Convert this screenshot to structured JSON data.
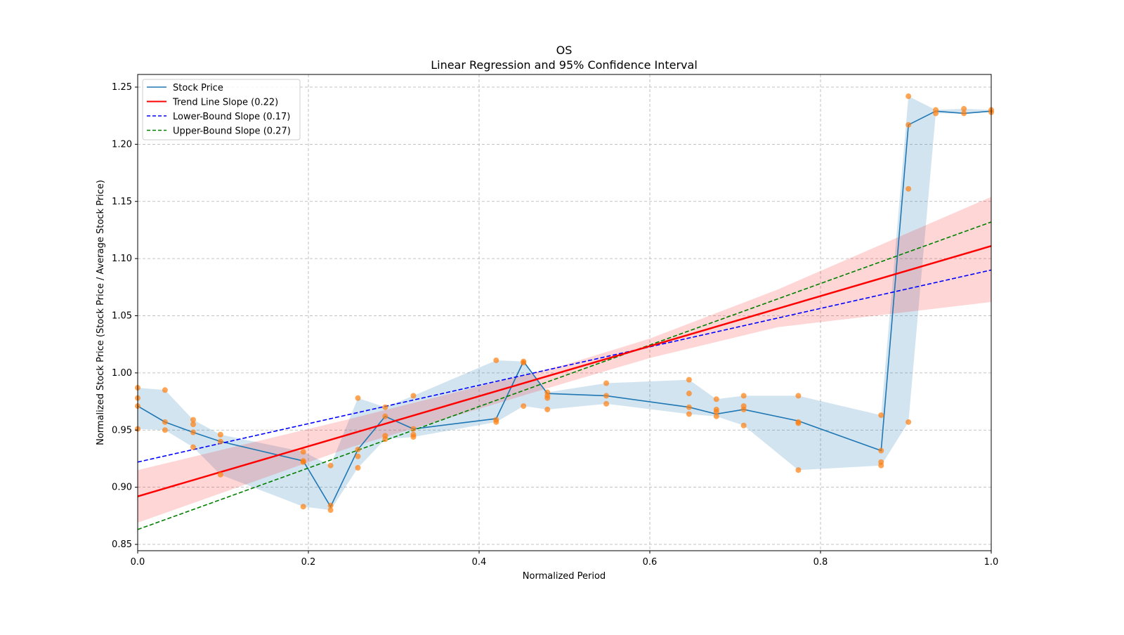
{
  "chart_data": {
    "type": "line",
    "title": "OS",
    "subtitle": "Linear Regression and 95% Confidence Interval",
    "xlabel": "Normalized Period",
    "ylabel": "Normalized Stock Price (Stock Price / Average Stock Price)",
    "xlim": [
      0,
      1
    ],
    "ylim": [
      0.843,
      1.26
    ],
    "xticks": [
      "0.0",
      "0.2",
      "0.4",
      "0.6",
      "0.8",
      "1.0"
    ],
    "yticks": [
      "0.85",
      "0.90",
      "0.95",
      "1.00",
      "1.05",
      "1.10",
      "1.15",
      "1.20",
      "1.25"
    ],
    "grid": true,
    "legend_position": "top-left",
    "legend": [
      {
        "label": "Stock Price",
        "color": "#1f77b4",
        "style": "solid"
      },
      {
        "label": "Trend Line Slope (0.22)",
        "color": "#ff0000",
        "style": "solid"
      },
      {
        "label": "Lower-Bound Slope (0.17)",
        "color": "#0000ff",
        "style": "dashed"
      },
      {
        "label": "Upper-Bound Slope (0.27)",
        "color": "#008000",
        "style": "dashed"
      }
    ],
    "stock_price": {
      "x": [
        0,
        0.032,
        0.065,
        0.097,
        0.194,
        0.226,
        0.258,
        0.29,
        0.323,
        0.42,
        0.452,
        0.48,
        0.549,
        0.646,
        0.678,
        0.71,
        0.774,
        0.871,
        0.903,
        0.935,
        0.968,
        1.0
      ],
      "y": [
        0.971,
        0.957,
        0.948,
        0.94,
        0.923,
        0.883,
        0.933,
        0.962,
        0.951,
        0.96,
        1.01,
        0.982,
        0.98,
        0.97,
        0.964,
        0.968,
        0.958,
        0.932,
        1.217,
        1.229,
        1.227,
        1.229
      ]
    },
    "scatter": [
      {
        "x": 0,
        "y": [
          0.987,
          0.978,
          0.971,
          0.951
        ]
      },
      {
        "x": 0.032,
        "y": [
          0.985,
          0.957,
          0.95
        ]
      },
      {
        "x": 0.065,
        "y": [
          0.959,
          0.955,
          0.948,
          0.935
        ]
      },
      {
        "x": 0.097,
        "y": [
          0.946,
          0.94,
          0.911
        ]
      },
      {
        "x": 0.194,
        "y": [
          0.931,
          0.923,
          0.922,
          0.883
        ]
      },
      {
        "x": 0.226,
        "y": [
          0.919,
          0.884,
          0.88
        ]
      },
      {
        "x": 0.258,
        "y": [
          0.978,
          0.933,
          0.927,
          0.917
        ]
      },
      {
        "x": 0.29,
        "y": [
          0.97,
          0.962,
          0.945,
          0.942
        ]
      },
      {
        "x": 0.323,
        "y": [
          0.98,
          0.951,
          0.946,
          0.944
        ]
      },
      {
        "x": 0.42,
        "y": [
          1.011,
          0.959,
          0.957
        ]
      },
      {
        "x": 0.452,
        "y": [
          1.01,
          1.009,
          0.971
        ]
      },
      {
        "x": 0.48,
        "y": [
          0.983,
          0.98,
          0.978,
          0.968
        ]
      },
      {
        "x": 0.549,
        "y": [
          0.991,
          0.98,
          0.973
        ]
      },
      {
        "x": 0.646,
        "y": [
          0.994,
          0.982,
          0.97,
          0.964
        ]
      },
      {
        "x": 0.678,
        "y": [
          0.977,
          0.968,
          0.966,
          0.962
        ]
      },
      {
        "x": 0.71,
        "y": [
          0.98,
          0.971,
          0.968,
          0.954
        ]
      },
      {
        "x": 0.774,
        "y": [
          0.98,
          0.957,
          0.956,
          0.915
        ]
      },
      {
        "x": 0.871,
        "y": [
          0.963,
          0.932,
          0.922,
          0.919
        ]
      },
      {
        "x": 0.903,
        "y": [
          1.242,
          1.217,
          1.161,
          0.957
        ]
      },
      {
        "x": 0.935,
        "y": [
          1.23,
          1.227
        ]
      },
      {
        "x": 0.968,
        "y": [
          1.231,
          1.227
        ]
      },
      {
        "x": 1.0,
        "y": [
          1.23,
          1.228
        ]
      }
    ],
    "trend_line": {
      "x": [
        0,
        1
      ],
      "y": [
        0.892,
        1.111
      ]
    },
    "lower_bound_line": {
      "x": [
        0,
        1
      ],
      "y": [
        0.922,
        1.09
      ]
    },
    "upper_bound_line": {
      "x": [
        0,
        1
      ],
      "y": [
        0.863,
        1.132
      ]
    },
    "trend_ci": {
      "x": [
        0,
        0.25,
        0.5,
        0.6,
        0.75,
        1.0
      ],
      "lower": [
        0.869,
        0.935,
        0.991,
        1.013,
        1.04,
        1.062
      ],
      "upper": [
        0.915,
        0.96,
        1.007,
        1.03,
        1.073,
        1.154
      ]
    },
    "colors": {
      "stock": "#1f77b4",
      "scatter": "#ff7f0e",
      "band": "#1f77b4",
      "trend": "#ff0000",
      "trend_ci": "#ff0000",
      "lower": "#0000ff",
      "upper": "#008000"
    }
  }
}
